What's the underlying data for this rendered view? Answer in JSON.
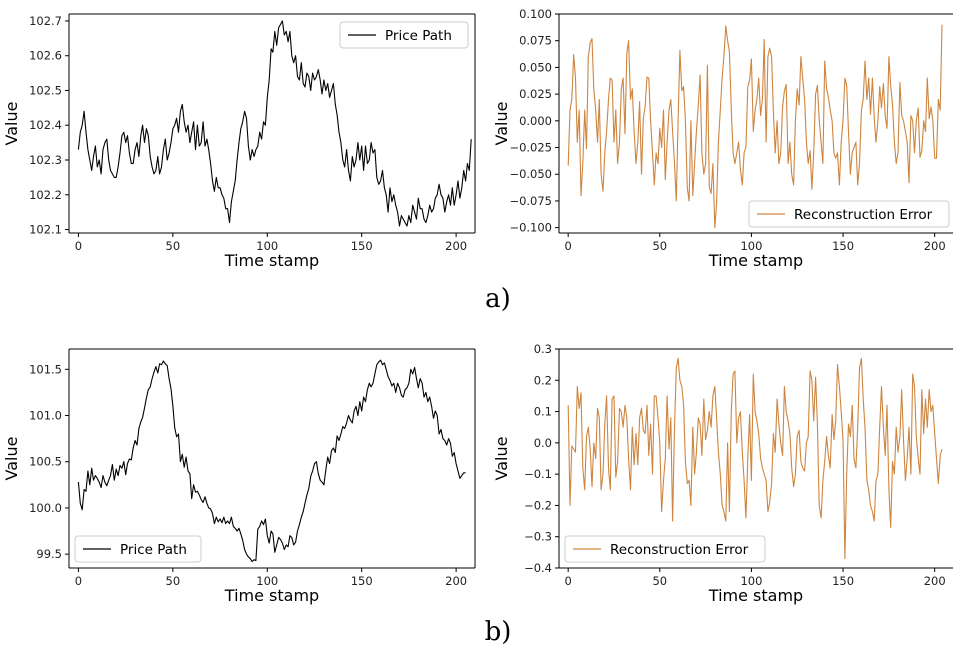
{
  "panel_labels": {
    "a": "a)",
    "b": "b)"
  },
  "colors": {
    "price": "#000000",
    "error": "#CD853F"
  },
  "chart_data": [
    {
      "id": "a_price",
      "type": "line",
      "xlabel": "Time stamp",
      "ylabel": "Value",
      "xlim": [
        -5,
        210
      ],
      "ylim": [
        102.09,
        102.72
      ],
      "xticks": [
        0,
        50,
        100,
        150,
        200
      ],
      "xtick_labels": [
        "0",
        "50",
        "100",
        "150",
        "200"
      ],
      "yticks": [
        102.1,
        102.2,
        102.3,
        102.4,
        102.5,
        102.6,
        102.7
      ],
      "ytick_labels": [
        "102.1",
        "102.2",
        "102.3",
        "102.4",
        "102.5",
        "102.6",
        "102.7"
      ],
      "legend_position": "upper right",
      "series": [
        {
          "name": "Price Path",
          "color": "#000000",
          "x_start": 0,
          "values": [
            102.33,
            102.38,
            102.4,
            102.44,
            102.38,
            102.33,
            102.3,
            102.27,
            102.31,
            102.34,
            102.28,
            102.3,
            102.26,
            102.33,
            102.35,
            102.36,
            102.3,
            102.27,
            102.26,
            102.25,
            102.25,
            102.28,
            102.32,
            102.37,
            102.38,
            102.35,
            102.37,
            102.32,
            102.29,
            102.29,
            102.33,
            102.35,
            102.31,
            102.37,
            102.4,
            102.35,
            102.39,
            102.37,
            102.31,
            102.28,
            102.26,
            102.27,
            102.31,
            102.26,
            102.28,
            102.33,
            102.36,
            102.3,
            102.32,
            102.35,
            102.39,
            102.4,
            102.42,
            102.38,
            102.44,
            102.46,
            102.41,
            102.38,
            102.4,
            102.35,
            102.38,
            102.41,
            102.33,
            102.4,
            102.34,
            102.35,
            102.41,
            102.34,
            102.36,
            102.33,
            102.29,
            102.24,
            102.21,
            102.25,
            102.22,
            102.22,
            102.2,
            102.19,
            102.16,
            102.16,
            102.12,
            102.18,
            102.21,
            102.24,
            102.3,
            102.35,
            102.39,
            102.41,
            102.44,
            102.42,
            102.34,
            102.3,
            102.33,
            102.31,
            102.33,
            102.34,
            102.38,
            102.36,
            102.41,
            102.4,
            102.48,
            102.53,
            102.62,
            102.61,
            102.67,
            102.63,
            102.68,
            102.69,
            102.7,
            102.66,
            102.67,
            102.64,
            102.67,
            102.6,
            102.58,
            102.6,
            102.54,
            102.53,
            102.58,
            102.52,
            102.51,
            102.55,
            102.54,
            102.5,
            102.55,
            102.53,
            102.54,
            102.56,
            102.53,
            102.49,
            102.53,
            102.5,
            102.52,
            102.48,
            102.5,
            102.52,
            102.46,
            102.43,
            102.38,
            102.35,
            102.3,
            102.28,
            102.33,
            102.27,
            102.24,
            102.31,
            102.28,
            102.3,
            102.35,
            102.3,
            102.34,
            102.27,
            102.34,
            102.29,
            102.3,
            102.35,
            102.32,
            102.33,
            102.25,
            102.23,
            102.24,
            102.27,
            102.22,
            102.2,
            102.15,
            102.22,
            102.18,
            102.2,
            102.17,
            102.15,
            102.11,
            102.14,
            102.13,
            102.12,
            102.11,
            102.14,
            102.12,
            102.17,
            102.15,
            102.13,
            102.19,
            102.16,
            102.16,
            102.13,
            102.12,
            102.14,
            102.17,
            102.15,
            102.16,
            102.19,
            102.2,
            102.23,
            102.2,
            102.19,
            102.15,
            102.18,
            102.2,
            102.17,
            102.22,
            102.17,
            102.2,
            102.24,
            102.19,
            102.22,
            102.27,
            102.24,
            102.29,
            102.27,
            102.36
          ]
        }
      ]
    },
    {
      "id": "a_error",
      "type": "line",
      "xlabel": "Time stamp",
      "ylabel": "Value",
      "xlim": [
        -5,
        210
      ],
      "ylim": [
        -0.105,
        0.1
      ],
      "xticks": [
        0,
        50,
        100,
        150,
        200
      ],
      "xtick_labels": [
        "0",
        "50",
        "100",
        "150",
        "200"
      ],
      "yticks": [
        -0.1,
        -0.075,
        -0.05,
        -0.025,
        0.0,
        0.025,
        0.05,
        0.075,
        0.1
      ],
      "ytick_labels": [
        "−0.100",
        "−0.075",
        "−0.050",
        "−0.025",
        "0.000",
        "0.025",
        "0.050",
        "0.075",
        "0.100"
      ],
      "legend_position": "lower right",
      "series": [
        {
          "name": "Reconstruction Error",
          "color": "#CD853F",
          "x_start": 0,
          "values": [
            -0.042,
            0.01,
            0.02,
            0.062,
            0.04,
            -0.02,
            0.01,
            -0.07,
            -0.04,
            0.01,
            -0.026,
            0.06,
            0.073,
            0.077,
            0.03,
            0.01,
            -0.02,
            0.02,
            -0.05,
            -0.066,
            -0.03,
            -0.01,
            0.02,
            0.04,
            0.038,
            -0.02,
            0.01,
            -0.04,
            -0.02,
            0.03,
            0.04,
            -0.012,
            0.063,
            0.075,
            0.02,
            0.03,
            -0.01,
            -0.04,
            -0.02,
            0.018,
            -0.05,
            0.002,
            0.013,
            0.041,
            0.04,
            0.0,
            -0.03,
            -0.06,
            -0.03,
            -0.04,
            -0.007,
            -0.025,
            0.01,
            -0.055,
            -0.02,
            0.01,
            0.02,
            -0.01,
            -0.04,
            -0.075,
            0.0,
            0.066,
            0.028,
            0.032,
            0.0,
            -0.063,
            -0.075,
            0.0,
            -0.07,
            -0.04,
            -0.01,
            0.015,
            0.043,
            -0.03,
            -0.05,
            -0.04,
            0.052,
            -0.062,
            -0.068,
            -0.04,
            -0.1,
            -0.077,
            -0.02,
            0.01,
            0.04,
            0.06,
            0.089,
            0.075,
            0.065,
            0.01,
            -0.03,
            -0.04,
            -0.03,
            -0.02,
            -0.045,
            -0.06,
            -0.03,
            -0.025,
            0.032,
            0.038,
            0.058,
            -0.01,
            0.01,
            0.02,
            0.04,
            0.005,
            0.02,
            0.076,
            -0.02,
            0.06,
            0.068,
            0.06,
            0.008,
            -0.03,
            0.0,
            -0.04,
            -0.03,
            0.013,
            0.028,
            0.034,
            -0.04,
            -0.02,
            -0.05,
            -0.06,
            0.0,
            0.03,
            0.015,
            0.06,
            0.04,
            0.02,
            -0.02,
            -0.04,
            -0.028,
            -0.064,
            -0.03,
            0.025,
            0.033,
            0.001,
            -0.02,
            -0.04,
            0.056,
            0.03,
            0.022,
            0.01,
            0.0,
            -0.03,
            -0.035,
            -0.03,
            -0.06,
            -0.02,
            0.0,
            0.04,
            0.033,
            -0.01,
            -0.05,
            -0.03,
            -0.025,
            -0.02,
            -0.06,
            -0.04,
            0.01,
            0.02,
            0.056,
            0.02,
            0.04,
            0.006,
            0.04,
            0.003,
            -0.02,
            0.0,
            0.032,
            0.012,
            0.035,
            0.005,
            -0.007,
            0.06,
            0.033,
            0.015,
            -0.02,
            -0.04,
            -0.03,
            0.036,
            0.005,
            0.0,
            -0.01,
            -0.02,
            -0.058,
            0.005,
            0.0,
            -0.03,
            0.0,
            0.012,
            -0.034,
            -0.028,
            0.0,
            -0.01,
            0.04,
            0.002,
            0.013,
            0.0,
            -0.035,
            -0.035,
            0.02,
            0.01,
            0.09
          ]
        }
      ]
    },
    {
      "id": "b_price",
      "type": "line",
      "xlabel": "Time stamp",
      "ylabel": "Value",
      "xlim": [
        -5,
        210
      ],
      "ylim": [
        99.35,
        101.72
      ],
      "xticks": [
        0,
        50,
        100,
        150,
        200
      ],
      "xtick_labels": [
        "0",
        "50",
        "100",
        "150",
        "200"
      ],
      "yticks": [
        99.5,
        100.0,
        100.5,
        101.0,
        101.5
      ],
      "ytick_labels": [
        "99.5",
        "100.0",
        "100.5",
        "101.0",
        "101.5"
      ],
      "legend_position": "lower left",
      "series": [
        {
          "name": "Price Path",
          "color": "#000000",
          "x_start": 0,
          "values": [
            100.28,
            100.05,
            99.98,
            100.2,
            100.18,
            100.4,
            100.25,
            100.43,
            100.3,
            100.35,
            100.32,
            100.28,
            100.22,
            100.35,
            100.28,
            100.24,
            100.3,
            100.35,
            100.47,
            100.3,
            100.42,
            100.35,
            100.46,
            100.43,
            100.5,
            100.36,
            100.48,
            100.53,
            100.52,
            100.65,
            100.73,
            100.68,
            100.86,
            100.93,
            100.98,
            101.08,
            101.19,
            101.28,
            101.31,
            101.4,
            101.47,
            101.53,
            101.46,
            101.56,
            101.55,
            101.59,
            101.56,
            101.54,
            101.4,
            101.29,
            101.1,
            100.87,
            100.77,
            100.8,
            100.5,
            100.58,
            100.44,
            100.55,
            100.4,
            100.37,
            100.1,
            100.25,
            100.17,
            100.18,
            100.14,
            100.09,
            100.06,
            100.12,
            100.05,
            100.0,
            99.99,
            99.94,
            99.83,
            99.9,
            99.85,
            99.88,
            99.84,
            99.9,
            99.83,
            99.86,
            99.83,
            99.9,
            99.8,
            99.78,
            99.75,
            99.78,
            99.72,
            99.65,
            99.55,
            99.5,
            99.47,
            99.45,
            99.42,
            99.44,
            99.43,
            99.77,
            99.8,
            99.86,
            99.82,
            99.88,
            99.7,
            99.62,
            99.75,
            99.72,
            99.52,
            99.6,
            99.68,
            99.66,
            99.62,
            99.55,
            99.6,
            99.58,
            99.7,
            99.68,
            99.6,
            99.63,
            99.75,
            99.82,
            99.9,
            99.96,
            100.05,
            100.14,
            100.21,
            100.34,
            100.4,
            100.48,
            100.5,
            100.37,
            100.3,
            100.28,
            100.25,
            100.41,
            100.55,
            100.48,
            100.62,
            100.65,
            100.6,
            100.78,
            100.73,
            100.8,
            100.88,
            100.86,
            100.92,
            101.0,
            100.95,
            100.92,
            101.05,
            101.1,
            101.0,
            101.15,
            101.05,
            101.2,
            101.15,
            101.28,
            101.35,
            101.31,
            101.35,
            101.45,
            101.55,
            101.58,
            101.6,
            101.55,
            101.57,
            101.5,
            101.42,
            101.38,
            101.32,
            101.35,
            101.25,
            101.35,
            101.3,
            101.22,
            101.2,
            101.28,
            101.3,
            101.35,
            101.5,
            101.45,
            101.52,
            101.4,
            101.3,
            101.4,
            101.35,
            101.2,
            101.25,
            101.15,
            101.2,
            101.1,
            100.97,
            101.05,
            101.0,
            100.8,
            100.85,
            100.75,
            100.73,
            100.68,
            100.75,
            100.7,
            100.56,
            100.6,
            100.48,
            100.4,
            100.32,
            100.35,
            100.38,
            100.38
          ]
        }
      ]
    },
    {
      "id": "b_error",
      "type": "line",
      "xlabel": "Time stamp",
      "ylabel": "Value",
      "xlim": [
        -5,
        210
      ],
      "ylim": [
        -0.4,
        0.3
      ],
      "xticks": [
        0,
        50,
        100,
        150,
        200
      ],
      "xtick_labels": [
        "0",
        "50",
        "100",
        "150",
        "200"
      ],
      "yticks": [
        -0.4,
        -0.3,
        -0.2,
        -0.1,
        0.0,
        0.1,
        0.2,
        0.3
      ],
      "ytick_labels": [
        "−0.4",
        "−0.3",
        "−0.2",
        "−0.1",
        "0.0",
        "0.1",
        "0.2",
        "0.3"
      ],
      "legend_position": "lower left",
      "series": [
        {
          "name": "Reconstruction Error",
          "color": "#CD853F",
          "x_start": 0,
          "values": [
            0.12,
            -0.2,
            -0.01,
            -0.02,
            -0.03,
            0.18,
            0.11,
            0.16,
            -0.08,
            -0.15,
            0.02,
            0.05,
            -0.02,
            -0.14,
            0.0,
            -0.05,
            0.11,
            0.08,
            -0.15,
            -0.1,
            0.06,
            0.15,
            -0.08,
            -0.15,
            0.14,
            0.15,
            -0.11,
            -0.06,
            0.11,
            0.1,
            0.05,
            0.12,
            0.08,
            -0.05,
            -0.15,
            0.05,
            -0.07,
            0.03,
            -0.07,
            0.08,
            0.11,
            0.04,
            0.03,
            0.12,
            -0.04,
            0.06,
            -0.1,
            0.15,
            0.15,
            0.08,
            0.0,
            -0.22,
            -0.12,
            -0.05,
            0.15,
            -0.02,
            0.08,
            -0.25,
            0.05,
            0.24,
            0.27,
            0.2,
            0.18,
            0.12,
            -0.06,
            -0.13,
            -0.12,
            -0.2,
            0.05,
            -0.1,
            -0.03,
            0.08,
            0.06,
            -0.04,
            0.14,
            0.01,
            0.04,
            0.1,
            0.05,
            0.15,
            0.18,
            0.08,
            -0.03,
            -0.1,
            -0.2,
            -0.22,
            -0.25,
            0.0,
            -0.22,
            0.1,
            0.22,
            0.23,
            0.0,
            0.08,
            0.1,
            -0.03,
            -0.12,
            -0.24,
            -0.05,
            0.09,
            -0.12,
            0.22,
            0.1,
            0.07,
            0.03,
            -0.05,
            -0.08,
            -0.1,
            -0.12,
            -0.22,
            -0.19,
            -0.13,
            0.03,
            -0.03,
            0.14,
            0.06,
            0.0,
            -0.04,
            0.18,
            0.1,
            0.07,
            0.03,
            -0.08,
            -0.14,
            -0.1,
            0.02,
            0.04,
            -0.06,
            -0.08,
            -0.09,
            0.0,
            0.02,
            0.23,
            0.2,
            0.07,
            0.21,
            0.06,
            -0.2,
            -0.24,
            -0.12,
            -0.06,
            0.02,
            -0.04,
            -0.08,
            0.09,
            0.01,
            0.07,
            0.25,
            0.18,
            0.1,
            0.01,
            -0.37,
            -0.1,
            0.06,
            0.02,
            0.12,
            -0.05,
            -0.08,
            0.05,
            0.24,
            0.27,
            0.14,
            0.05,
            -0.12,
            -0.15,
            -0.2,
            -0.22,
            -0.25,
            -0.12,
            -0.1,
            0.05,
            0.18,
            0.05,
            -0.04,
            0.12,
            -0.15,
            -0.27,
            -0.06,
            -0.1,
            0.05,
            -0.03,
            0.02,
            0.17,
            0.01,
            -0.12,
            -0.05,
            0.05,
            -0.1,
            0.22,
            0.18,
            0.02,
            -0.05,
            -0.1,
            0.17,
            0.03,
            0.14,
            0.05,
            0.17,
            0.1,
            0.12,
            0.03,
            -0.05,
            -0.13,
            -0.04,
            -0.02
          ]
        }
      ]
    }
  ]
}
